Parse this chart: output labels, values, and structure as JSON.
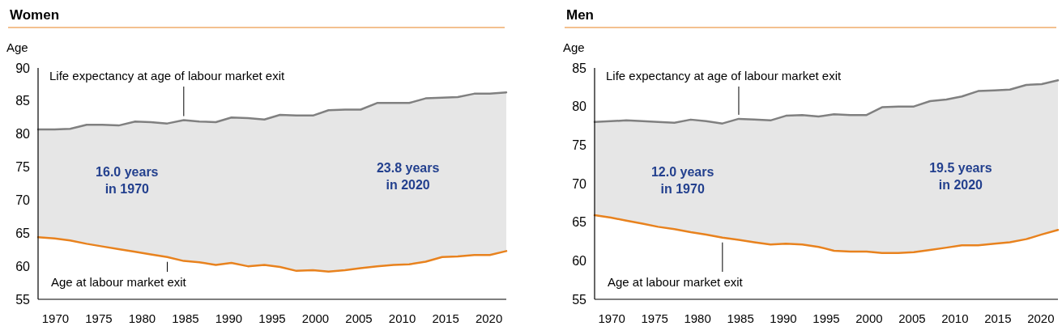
{
  "chart_data": [
    {
      "type": "line",
      "title": "Women",
      "ylabel": "Age",
      "x": [
        1968.0,
        1969.9,
        1971.7,
        1973.6,
        1975.4,
        1977.3,
        1979.2,
        1981.0,
        1982.9,
        1984.8,
        1986.6,
        1988.5,
        1990.3,
        1992.2,
        1994.1,
        1995.9,
        1997.8,
        1999.7,
        2001.5,
        2003.4,
        2005.2,
        2007.1,
        2009.0,
        2010.8,
        2012.7,
        2014.6,
        2016.4,
        2018.3,
        2020.1,
        2022.0
      ],
      "series": [
        {
          "name": "Life expectancy at age of labour market exit",
          "type": "area",
          "color": "#808080",
          "values": [
            80.7,
            80.7,
            80.8,
            81.4,
            81.4,
            81.3,
            81.9,
            81.8,
            81.6,
            82.1,
            81.9,
            81.8,
            82.5,
            82.4,
            82.2,
            82.9,
            82.8,
            82.8,
            83.6,
            83.7,
            83.7,
            84.7,
            84.7,
            84.7,
            85.4,
            85.5,
            85.6,
            86.1,
            86.1,
            86.3
          ]
        },
        {
          "name": "Age at labour market exit",
          "color": "#e8821e",
          "values": [
            64.4,
            64.2,
            63.9,
            63.4,
            63.0,
            62.6,
            62.2,
            61.8,
            61.4,
            60.8,
            60.6,
            60.2,
            60.5,
            60.0,
            60.2,
            59.9,
            59.3,
            59.4,
            59.2,
            59.4,
            59.7,
            60.0,
            60.2,
            60.3,
            60.7,
            61.4,
            61.5,
            61.7,
            61.7,
            62.3
          ]
        }
      ],
      "xlim": [
        1968,
        2022
      ],
      "xticks": [
        1970,
        1975,
        1980,
        1985,
        1990,
        1995,
        2000,
        2005,
        2010,
        2015,
        2020
      ],
      "ylim": [
        55,
        90
      ],
      "yticks": [
        55,
        60,
        65,
        70,
        75,
        80,
        85,
        90
      ],
      "annotations": [
        "16.0 years\nin 1970",
        "23.8 years\nin 2020"
      ]
    },
    {
      "type": "line",
      "title": "Men",
      "ylabel": "Age",
      "x": [
        1968.0,
        1969.9,
        1971.7,
        1973.6,
        1975.4,
        1977.3,
        1979.2,
        1981.0,
        1982.9,
        1984.8,
        1986.6,
        1988.5,
        1990.3,
        1992.2,
        1994.1,
        1995.9,
        1997.8,
        1999.7,
        2001.5,
        2003.4,
        2005.2,
        2007.1,
        2009.0,
        2010.8,
        2012.7,
        2014.6,
        2016.4,
        2018.3,
        2020.1,
        2022.0
      ],
      "series": [
        {
          "name": "Life expectancy at age of labour market exit",
          "type": "area",
          "color": "#808080",
          "values": [
            78.0,
            78.1,
            78.2,
            78.1,
            78.0,
            77.9,
            78.3,
            78.1,
            77.8,
            78.4,
            78.3,
            78.2,
            78.8,
            78.9,
            78.7,
            79.0,
            78.9,
            78.9,
            79.9,
            80.0,
            80.0,
            80.7,
            80.9,
            81.3,
            82.0,
            82.1,
            82.2,
            82.8,
            82.9,
            83.4
          ]
        },
        {
          "name": "Age at labour market exit",
          "color": "#e8821e",
          "values": [
            65.9,
            65.6,
            65.2,
            64.8,
            64.4,
            64.1,
            63.7,
            63.4,
            63.0,
            62.7,
            62.4,
            62.1,
            62.2,
            62.1,
            61.8,
            61.3,
            61.2,
            61.2,
            61.0,
            61.0,
            61.1,
            61.4,
            61.7,
            62.0,
            62.0,
            62.2,
            62.4,
            62.8,
            63.4,
            64.0
          ]
        }
      ],
      "xlim": [
        1968,
        2022
      ],
      "xticks": [
        1970,
        1975,
        1980,
        1985,
        1990,
        1995,
        2000,
        2005,
        2010,
        2015,
        2020
      ],
      "ylim": [
        55,
        85
      ],
      "yticks": [
        55,
        60,
        65,
        70,
        75,
        80,
        85
      ],
      "annotations": [
        "12.0 years\nin 1970",
        "19.5 years\nin 2020"
      ]
    }
  ]
}
